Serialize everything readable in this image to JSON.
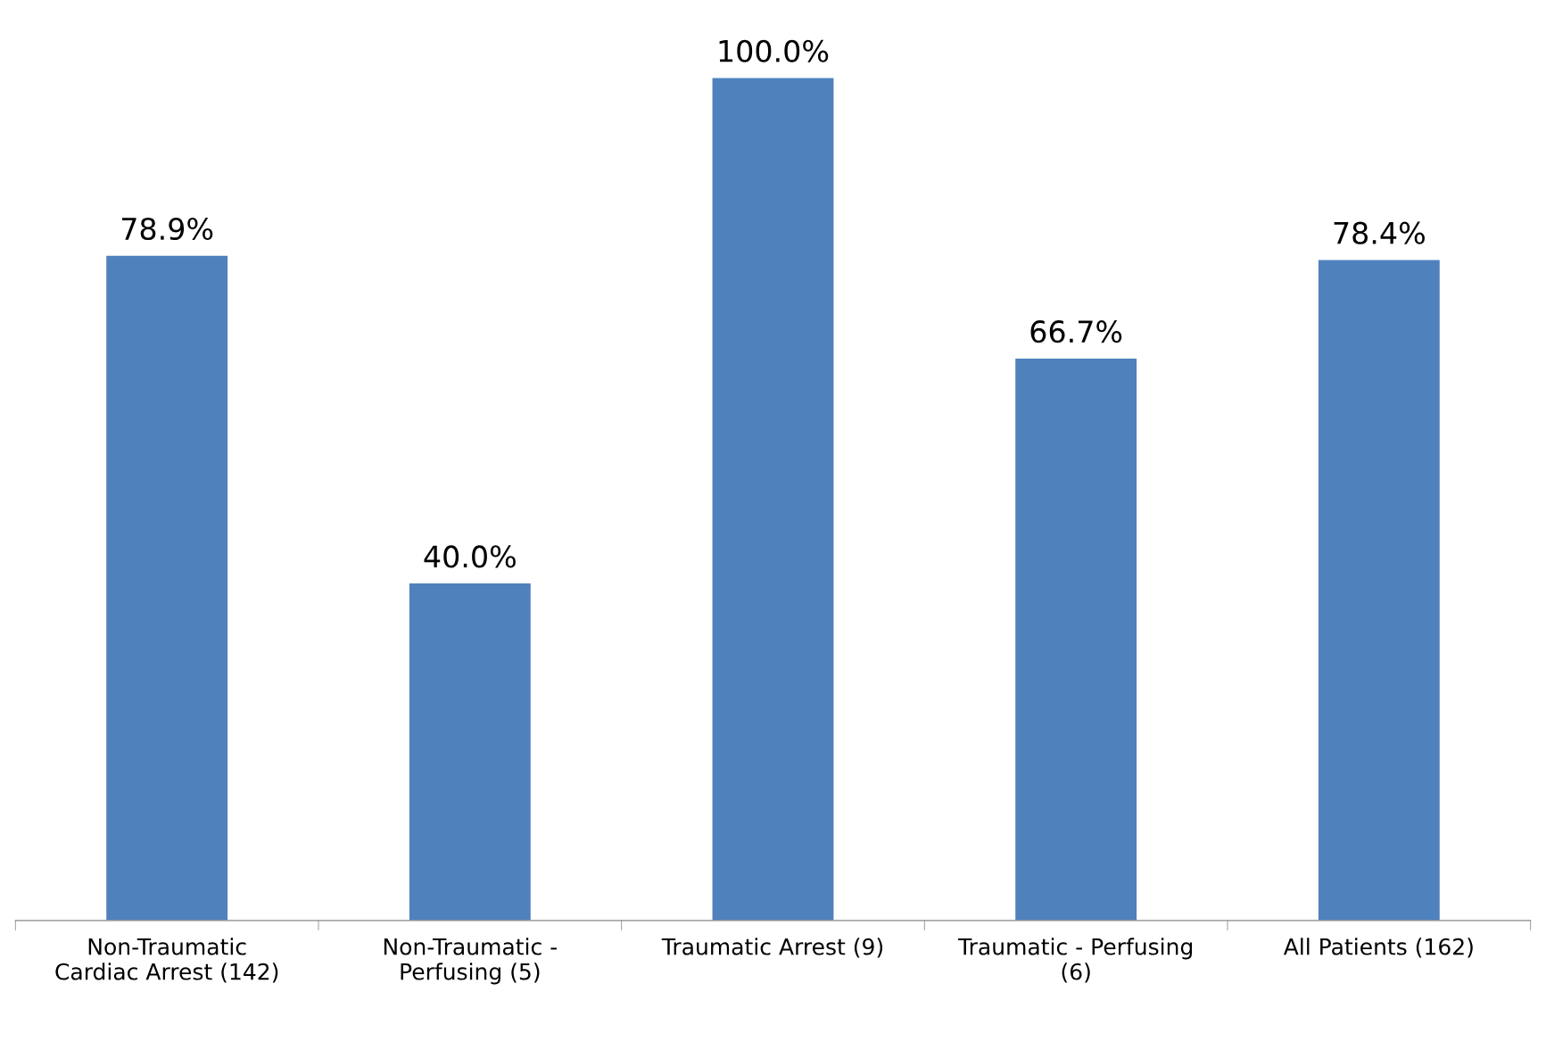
{
  "chart_data": {
    "type": "bar",
    "categories": [
      "Non-Traumatic\nCardiac Arrest (142)",
      "Non-Traumatic -\nPerfusing (5)",
      "Traumatic Arrest (9)",
      "Traumatic - Perfusing\n(6)",
      "All Patients (162)"
    ],
    "values": [
      78.9,
      40.0,
      100.0,
      66.7,
      78.4
    ],
    "value_labels": [
      "78.9%",
      "40.0%",
      "100.0%",
      "66.7%",
      "78.4%"
    ],
    "color": "#4f81bd",
    "grid": false,
    "legend": false
  }
}
